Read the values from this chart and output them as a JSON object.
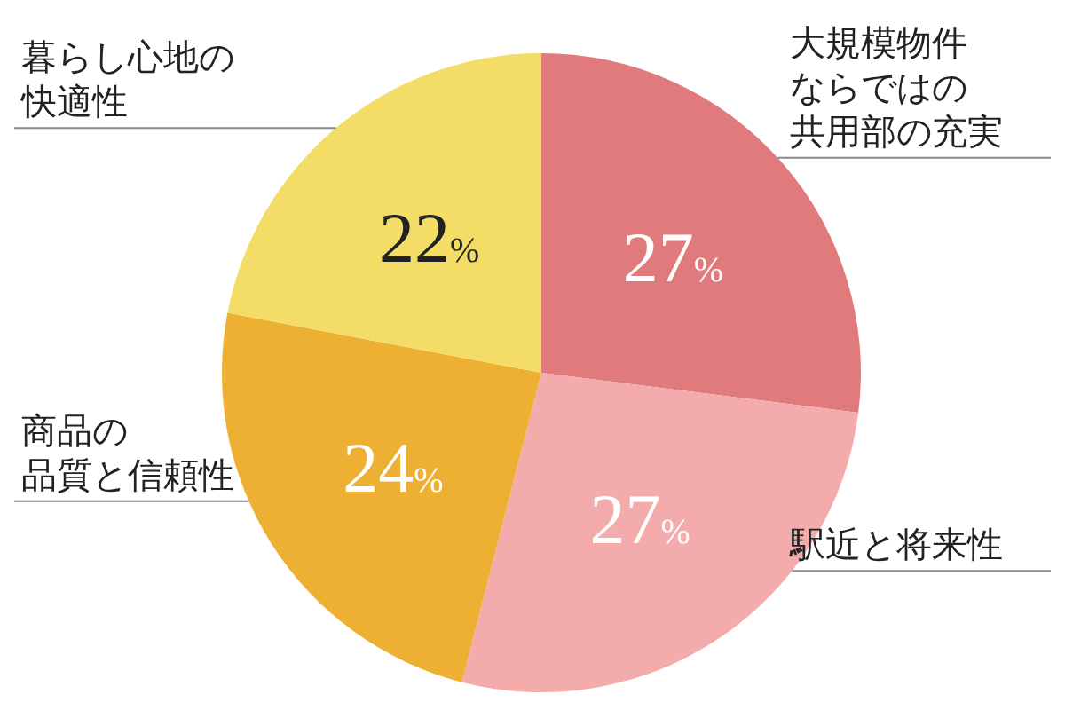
{
  "chart_data": {
    "type": "pie",
    "categories": [
      "大規模物件ならではの共用部の充実",
      "駅近と将来性",
      "商品の品質と信頼性",
      "暮らし心地の快適性"
    ],
    "values": [
      27,
      27,
      24,
      22
    ],
    "colors": [
      "#e07a7c",
      "#f3abac",
      "#edb032",
      "#f3dd66"
    ],
    "value_labels": [
      "27%",
      "27%",
      "24%",
      "22%"
    ]
  }
}
